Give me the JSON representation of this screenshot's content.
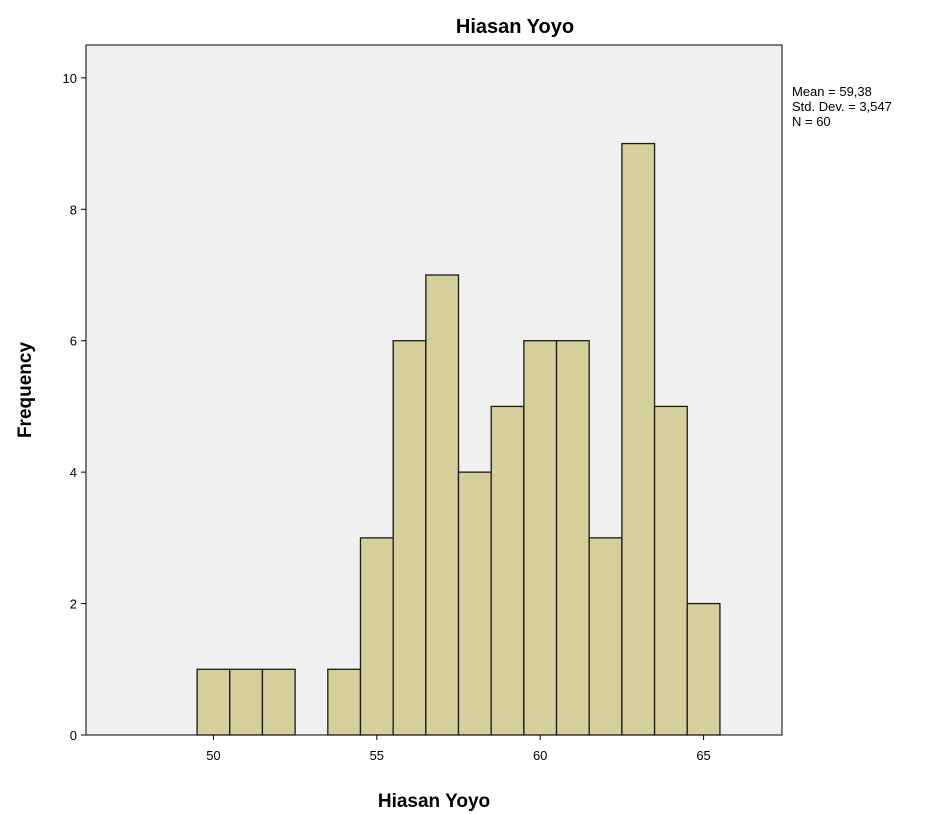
{
  "chart_data": {
    "type": "bar",
    "title": "Hiasan Yoyo",
    "xlabel": "Hiasan Yoyo",
    "ylabel": "Frequency",
    "bin_width": 1,
    "x": [
      50,
      51,
      52,
      53,
      54,
      55,
      56,
      57,
      58,
      59,
      60,
      61,
      62,
      63,
      64,
      65
    ],
    "values": [
      1,
      1,
      1,
      0,
      1,
      3,
      6,
      7,
      4,
      5,
      6,
      6,
      3,
      9,
      5,
      2
    ],
    "xlim": [
      46.1,
      67.4
    ],
    "ylim": [
      0,
      10.5
    ],
    "x_ticks": [
      50,
      55,
      60,
      65
    ],
    "y_ticks": [
      0,
      2,
      4,
      6,
      8,
      10
    ],
    "grid": false,
    "colors": {
      "bar_fill": "#d5cf9b",
      "bar_stroke": "#1a1a1a",
      "plot_bg": "#f0f0f0",
      "axis": "#000000"
    },
    "stats": {
      "mean": "Mean = 59,38",
      "std": "Std. Dev. = 3,547",
      "n": "N = 60"
    }
  }
}
